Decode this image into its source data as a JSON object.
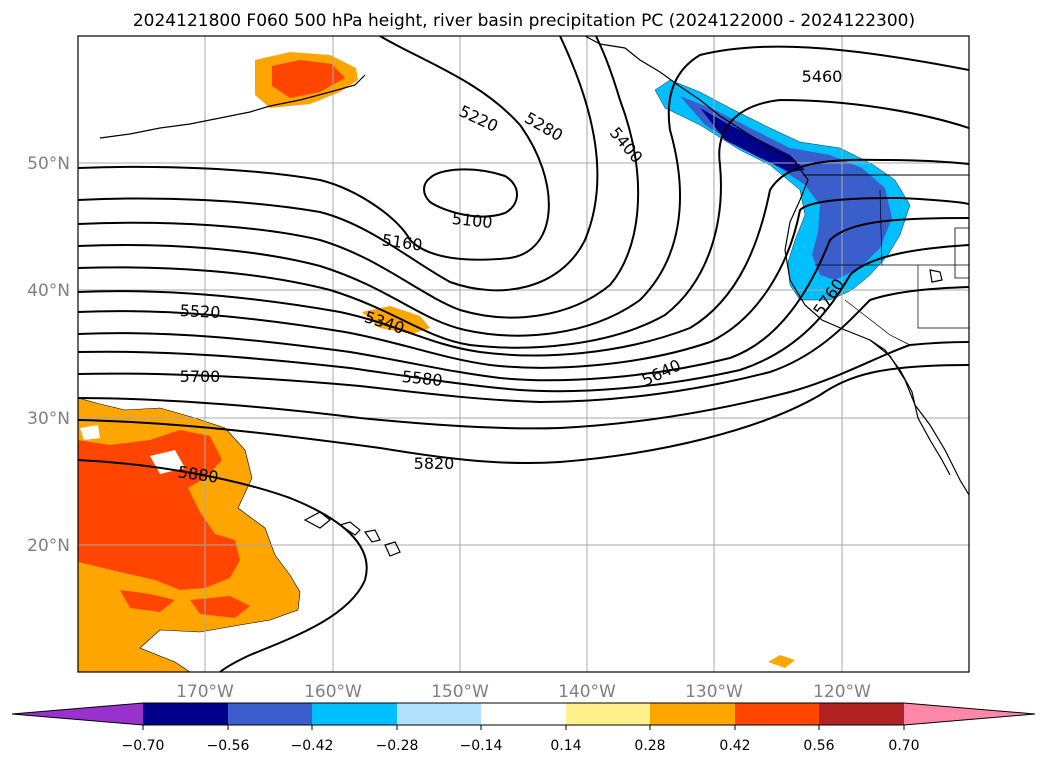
{
  "title": "2024121800 F060 500 hPa height, river basin precipitation PC (2024122000 - 2024122300)",
  "lat_labels": [
    "50°N",
    "40°N",
    "30°N",
    "20°N"
  ],
  "lon_labels": [
    "170°W",
    "160°W",
    "150°W",
    "140°W",
    "130°W",
    "120°W"
  ],
  "contour_labels": [
    "5100",
    "5160",
    "5220",
    "5280",
    "5340",
    "5400",
    "5460",
    "5520",
    "5580",
    "5640",
    "5700",
    "5760",
    "5820",
    "5880"
  ],
  "colorbar": {
    "ticks": [
      "−0.70",
      "−0.56",
      "−0.42",
      "−0.28",
      "−0.14",
      "0.14",
      "0.28",
      "0.42",
      "0.56",
      "0.70"
    ],
    "colors": [
      "#9932cc",
      "#00008b",
      "#3a5fcd",
      "#00bfff",
      "#b0e2ff",
      "#ffffff",
      "#fff08c",
      "#ffa500",
      "#ff4500",
      "#b22222",
      "#ff88a8"
    ]
  }
}
